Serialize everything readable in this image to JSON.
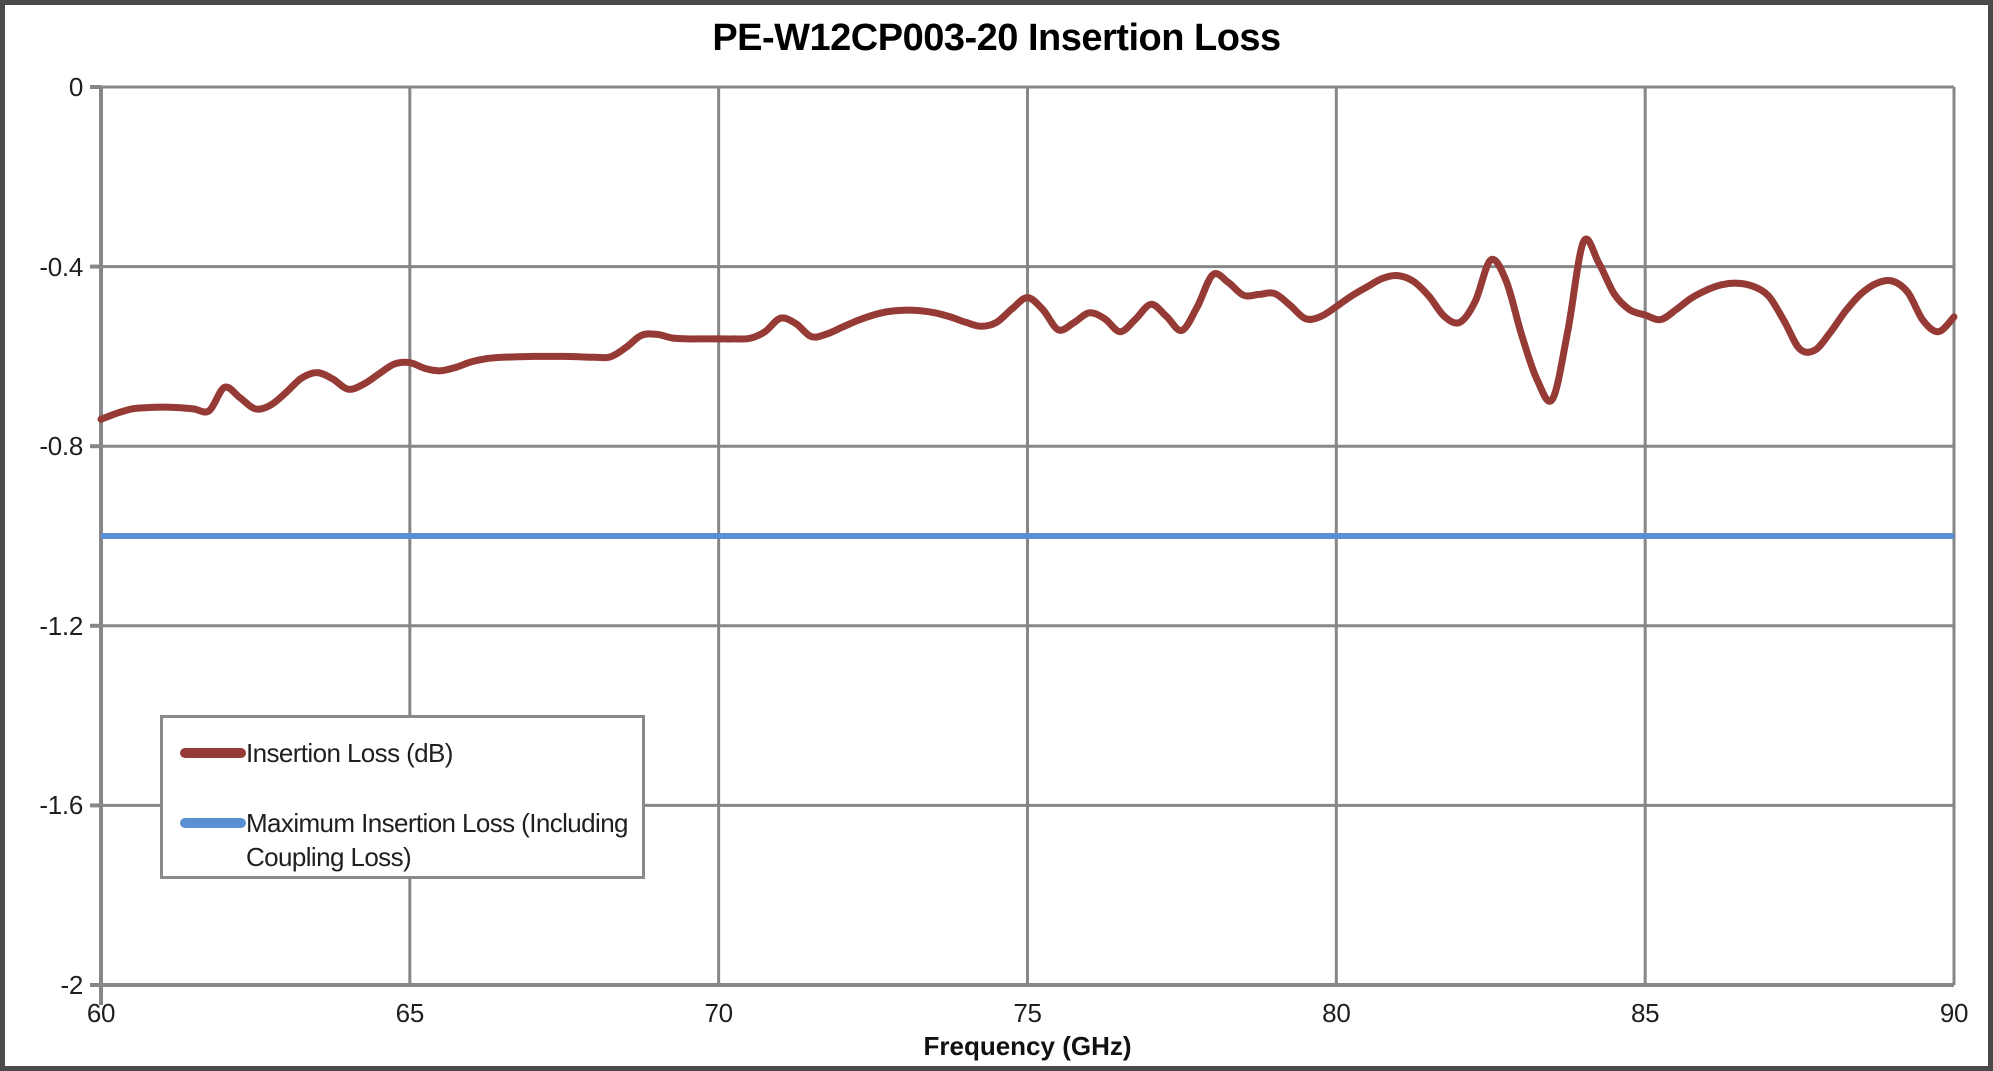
{
  "chart_data": {
    "type": "line",
    "title": "PE-W12CP003-20 Insertion Loss",
    "xlabel": "Frequency (GHz)",
    "ylabel": "",
    "xlim": [
      60,
      90
    ],
    "ylim": [
      -2,
      0
    ],
    "x_ticks": [
      60,
      65,
      70,
      75,
      80,
      85,
      90
    ],
    "x_tick_labels": [
      "60",
      "65",
      "70",
      "75",
      "80",
      "85",
      "90"
    ],
    "y_ticks": [
      0,
      -0.4,
      -0.8,
      -1.2,
      -1.6,
      -2
    ],
    "y_tick_labels": [
      "0",
      "-0.4",
      "-0.8",
      "-1.2",
      "-1.6",
      "-2"
    ],
    "grid": true,
    "grid_color": "#878787",
    "legend_position": "inside-lower-left",
    "series": [
      {
        "name": "Insertion Loss (dB)",
        "type": "line",
        "color": "#963A36",
        "x": [
          60,
          60.25,
          60.5,
          60.75,
          61,
          61.25,
          61.5,
          61.75,
          62,
          62.25,
          62.5,
          62.75,
          63,
          63.25,
          63.5,
          63.75,
          64,
          64.25,
          64.5,
          64.75,
          65,
          65.25,
          65.5,
          65.75,
          66,
          66.25,
          66.5,
          66.75,
          67,
          67.25,
          67.5,
          67.75,
          68,
          68.25,
          68.5,
          68.75,
          69,
          69.25,
          69.5,
          69.75,
          70,
          70.25,
          70.5,
          70.75,
          71,
          71.25,
          71.5,
          71.75,
          72,
          72.25,
          72.5,
          72.75,
          73,
          73.25,
          73.5,
          73.75,
          74,
          74.25,
          74.5,
          74.75,
          75,
          75.25,
          75.5,
          75.75,
          76,
          76.25,
          76.5,
          76.75,
          77,
          77.25,
          77.5,
          77.75,
          78,
          78.25,
          78.5,
          78.75,
          79,
          79.25,
          79.5,
          79.75,
          80,
          80.25,
          80.5,
          80.75,
          81,
          81.25,
          81.5,
          81.75,
          82,
          82.25,
          82.5,
          82.75,
          83,
          83.25,
          83.5,
          83.75,
          84,
          84.25,
          84.5,
          84.75,
          85,
          85.25,
          85.5,
          85.75,
          86,
          86.25,
          86.5,
          86.75,
          87,
          87.25,
          87.5,
          87.75,
          88,
          88.25,
          88.5,
          88.75,
          89,
          89.25,
          89.5,
          89.75,
          90
        ],
        "y": [
          -0.74,
          -0.727,
          -0.717,
          -0.714,
          -0.713,
          -0.714,
          -0.717,
          -0.721,
          -0.669,
          -0.692,
          -0.717,
          -0.708,
          -0.68,
          -0.648,
          -0.636,
          -0.65,
          -0.673,
          -0.662,
          -0.639,
          -0.617,
          -0.614,
          -0.627,
          -0.632,
          -0.624,
          -0.612,
          -0.605,
          -0.602,
          -0.601,
          -0.6,
          -0.6,
          -0.6,
          -0.601,
          -0.602,
          -0.601,
          -0.58,
          -0.553,
          -0.551,
          -0.559,
          -0.561,
          -0.561,
          -0.561,
          -0.561,
          -0.56,
          -0.545,
          -0.515,
          -0.527,
          -0.556,
          -0.55,
          -0.535,
          -0.52,
          -0.508,
          -0.5,
          -0.497,
          -0.498,
          -0.503,
          -0.512,
          -0.524,
          -0.533,
          -0.524,
          -0.494,
          -0.469,
          -0.496,
          -0.541,
          -0.525,
          -0.503,
          -0.516,
          -0.545,
          -0.517,
          -0.484,
          -0.511,
          -0.542,
          -0.489,
          -0.418,
          -0.435,
          -0.464,
          -0.462,
          -0.46,
          -0.486,
          -0.516,
          -0.511,
          -0.489,
          -0.465,
          -0.445,
          -0.426,
          -0.42,
          -0.433,
          -0.466,
          -0.511,
          -0.524,
          -0.477,
          -0.385,
          -0.432,
          -0.552,
          -0.652,
          -0.695,
          -0.541,
          -0.345,
          -0.392,
          -0.461,
          -0.496,
          -0.508,
          -0.518,
          -0.496,
          -0.47,
          -0.452,
          -0.44,
          -0.437,
          -0.444,
          -0.466,
          -0.521,
          -0.583,
          -0.586,
          -0.546,
          -0.498,
          -0.46,
          -0.437,
          -0.432,
          -0.457,
          -0.52,
          -0.545,
          -0.512
        ]
      },
      {
        "name": "Maximum Insertion Loss (Including Coupling Loss)",
        "type": "hline",
        "color": "#5B8FD4",
        "y_value": -1.0
      }
    ]
  }
}
